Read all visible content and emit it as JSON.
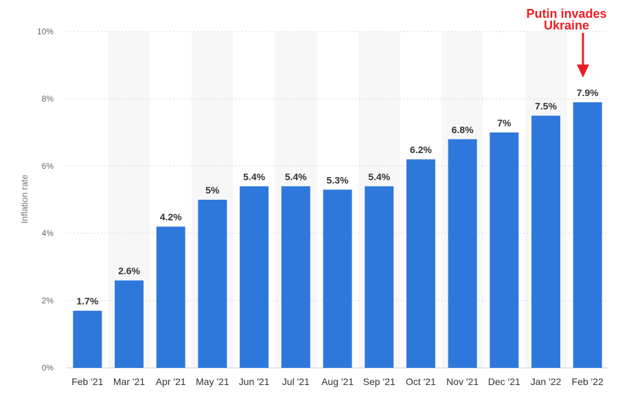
{
  "chart_data": {
    "type": "bar",
    "title": "",
    "xlabel": "",
    "ylabel": "Inflation rate",
    "ylim": [
      0,
      10
    ],
    "y_ticks": [
      "0%",
      "2%",
      "4%",
      "6%",
      "8%",
      "10%"
    ],
    "categories": [
      "Feb '21",
      "Mar '21",
      "Apr '21",
      "May '21",
      "Jun '21",
      "Jul '21",
      "Aug '21",
      "Sep '21",
      "Oct '21",
      "Nov '21",
      "Dec '21",
      "Jan '22",
      "Feb '22"
    ],
    "values": [
      1.7,
      2.6,
      4.2,
      5,
      5.4,
      5.4,
      5.3,
      5.4,
      6.2,
      6.8,
      7,
      7.5,
      7.9
    ],
    "data_labels": [
      "1.7%",
      "2.6%",
      "4.2%",
      "5%",
      "5.4%",
      "5.4%",
      "5.3%",
      "5.4%",
      "6.2%",
      "6.8%",
      "7%",
      "7.5%",
      "7.9%"
    ],
    "grid": true,
    "bar_color": "#2f78db",
    "annotation": {
      "lines": [
        "Putin invades",
        "Ukraine"
      ],
      "target_category": "Feb '22",
      "color": "#ee1d23"
    }
  }
}
